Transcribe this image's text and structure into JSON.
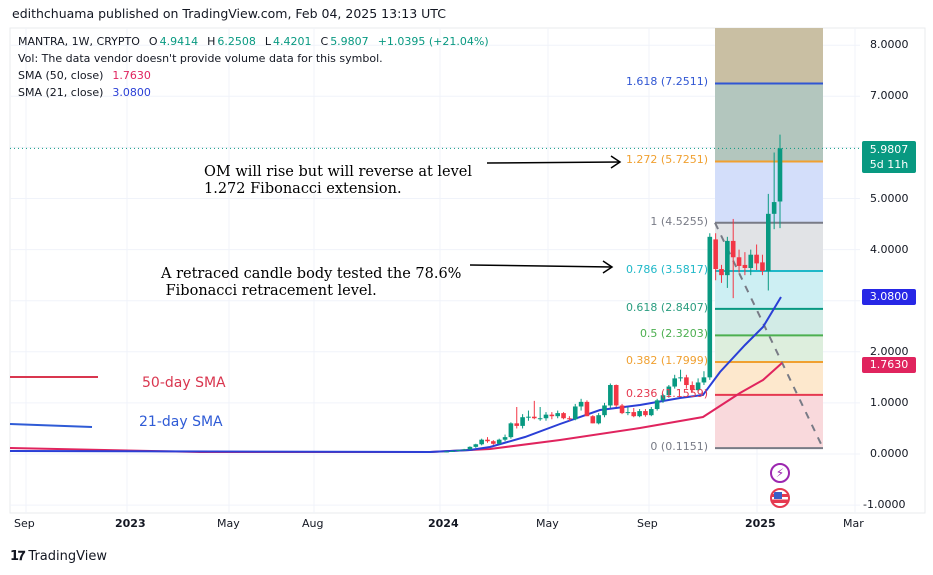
{
  "header": {
    "text": "edithchuama published on TradingView.com, Feb 04, 2025 13:13 UTC"
  },
  "legend": {
    "symbol": "MANTRA, 1W, CRYPTO",
    "open_label": "O",
    "open": "4.9414",
    "high_label": "H",
    "high": "6.2508",
    "low_label": "L",
    "low": "4.4201",
    "close_label": "C",
    "close": "5.9807",
    "change": "+1.0395 (+21.04%)",
    "vol_note": "Vol: The data vendor doesn't provide volume data for this symbol.",
    "sma50_label": "SMA (50, close)",
    "sma50_value": "1.7630",
    "sma21_label": "SMA (21, close)",
    "sma21_value": "3.0800"
  },
  "annotations": {
    "note1_line1": "OM will rise but will reverse at level",
    "note1_line2": "1.272 Fibonacci extension.",
    "note2_line1": "A retraced candle body tested the 78.6%",
    "note2_line2": " Fibonacci retracement level.",
    "sma50_key": "50-day SMA",
    "sma21_key": "21-day SMA"
  },
  "price_tags": {
    "last_price": "5.9807",
    "countdown": "5d 11h",
    "sma21": "3.0800",
    "sma50": "1.7630"
  },
  "colors": {
    "up": "#089981",
    "down": "#f23645",
    "sma21": "#2a3fd6",
    "sma50": "#e0245e",
    "last_price_bg": "#089981",
    "sma21_bg": "#2727e6",
    "sma50_bg": "#e0245e"
  },
  "icons": [
    "lightning-event-icon",
    "us-flag-event-icon",
    "tradingview-logo-icon"
  ],
  "branding": {
    "logo_text": "TradingView"
  },
  "chart_data": {
    "type": "candlestick",
    "interval": "1W",
    "y_axis": {
      "ticks": [
        "8.0000",
        "7.0000",
        "5.0000",
        "4.0000",
        "2.0000",
        "1.0000",
        "0.0000",
        "-1.0000"
      ],
      "range": [
        -1.1,
        8.3
      ]
    },
    "x_axis": {
      "ticks": [
        "Sep",
        "2023",
        "May",
        "Aug",
        "2024",
        "May",
        "Sep",
        "2025",
        "Mar"
      ]
    },
    "grid": true,
    "fib_levels": [
      {
        "label": "1.618 (7.2511)",
        "ratio": 1.618,
        "price": 7.2511,
        "color": "#3056d3",
        "fill": "#b3c6be"
      },
      {
        "label": "1.272 (5.7251)",
        "ratio": 1.272,
        "price": 5.7251,
        "color": "#f0a030",
        "fill": "#d3defa"
      },
      {
        "label": "1 (4.5255)",
        "ratio": 1,
        "price": 4.5255,
        "color": "#787b86",
        "fill": "#e1e3e6"
      },
      {
        "label": "0.786 (3.5817)",
        "ratio": 0.786,
        "price": 3.5817,
        "color": "#1fb8c8",
        "fill": "#cdeff3"
      },
      {
        "label": "0.618 (2.8407)",
        "ratio": 0.618,
        "price": 2.8407,
        "color": "#089981",
        "fill": "#d2ebe6"
      },
      {
        "label": "0.5 (2.3203)",
        "ratio": 0.5,
        "price": 2.3203,
        "color": "#4caf50",
        "fill": "#ddeedd"
      },
      {
        "label": "0.382 (1.7999)",
        "ratio": 0.382,
        "price": 1.7999,
        "color": "#f0a030",
        "fill": "#fde8cd"
      },
      {
        "label": "0.236 (1.1559)",
        "ratio": 0.236,
        "price": 1.1559,
        "color": "#e53950",
        "fill": "#f9d9dc"
      },
      {
        "label": "0 (0.1151)",
        "ratio": 0,
        "price": 0.1151,
        "color": "#787b86",
        "fill": null
      }
    ],
    "fib_top_fill": "#c9bfa3",
    "candles": [
      [
        0.04,
        0.05,
        0.03,
        0.05
      ],
      [
        0.05,
        0.07,
        0.04,
        0.06
      ],
      [
        0.06,
        0.08,
        0.05,
        0.08
      ],
      [
        0.08,
        0.1,
        0.07,
        0.09
      ],
      [
        0.09,
        0.15,
        0.08,
        0.14
      ],
      [
        0.14,
        0.2,
        0.12,
        0.19
      ],
      [
        0.19,
        0.3,
        0.17,
        0.28
      ],
      [
        0.28,
        0.33,
        0.22,
        0.25
      ],
      [
        0.25,
        0.27,
        0.18,
        0.2
      ],
      [
        0.2,
        0.3,
        0.19,
        0.28
      ],
      [
        0.28,
        0.38,
        0.25,
        0.33
      ],
      [
        0.33,
        0.62,
        0.3,
        0.6
      ],
      [
        0.6,
        0.92,
        0.5,
        0.55
      ],
      [
        0.55,
        0.78,
        0.5,
        0.72
      ],
      [
        0.72,
        0.85,
        0.65,
        0.73
      ],
      [
        0.73,
        1.04,
        0.68,
        0.7
      ],
      [
        0.7,
        0.92,
        0.65,
        0.7
      ],
      [
        0.7,
        0.82,
        0.65,
        0.77
      ],
      [
        0.77,
        0.82,
        0.68,
        0.74
      ],
      [
        0.74,
        0.85,
        0.7,
        0.8
      ],
      [
        0.8,
        0.82,
        0.68,
        0.7
      ],
      [
        0.7,
        0.74,
        0.65,
        0.68
      ],
      [
        0.68,
        0.98,
        0.66,
        0.93
      ],
      [
        0.93,
        1.08,
        0.85,
        1.02
      ],
      [
        1.02,
        1.05,
        0.74,
        0.74
      ],
      [
        0.74,
        0.76,
        0.6,
        0.6
      ],
      [
        0.6,
        0.8,
        0.58,
        0.76
      ],
      [
        0.76,
        1.0,
        0.72,
        0.95
      ],
      [
        0.95,
        1.38,
        0.9,
        1.35
      ],
      [
        1.35,
        1.36,
        0.92,
        0.95
      ],
      [
        0.95,
        0.98,
        0.78,
        0.8
      ],
      [
        0.8,
        0.92,
        0.76,
        0.82
      ],
      [
        0.82,
        0.9,
        0.72,
        0.74
      ],
      [
        0.74,
        0.88,
        0.72,
        0.84
      ],
      [
        0.84,
        0.88,
        0.73,
        0.76
      ],
      [
        0.76,
        0.92,
        0.74,
        0.88
      ],
      [
        0.88,
        1.08,
        0.85,
        1.05
      ],
      [
        1.05,
        1.18,
        1.0,
        1.15
      ],
      [
        1.15,
        1.35,
        1.1,
        1.32
      ],
      [
        1.32,
        1.55,
        1.28,
        1.48
      ],
      [
        1.48,
        1.65,
        1.42,
        1.5
      ],
      [
        1.5,
        1.55,
        1.28,
        1.35
      ],
      [
        1.35,
        1.42,
        1.2,
        1.25
      ],
      [
        1.25,
        1.48,
        1.2,
        1.4
      ],
      [
        1.4,
        1.62,
        1.35,
        1.5
      ],
      [
        1.5,
        4.32,
        1.45,
        4.25
      ],
      [
        4.2,
        4.32,
        3.4,
        3.62
      ],
      [
        3.62,
        3.7,
        3.35,
        3.5
      ],
      [
        3.5,
        4.25,
        3.25,
        4.17
      ],
      [
        4.17,
        4.6,
        3.05,
        3.85
      ],
      [
        3.85,
        4.0,
        3.55,
        3.68
      ],
      [
        3.7,
        3.95,
        3.5,
        3.64
      ],
      [
        3.64,
        4.0,
        3.5,
        3.9
      ],
      [
        3.9,
        4.1,
        3.6,
        3.73
      ],
      [
        3.75,
        3.9,
        3.5,
        3.58
      ],
      [
        3.58,
        5.09,
        3.2,
        4.7
      ],
      [
        4.7,
        5.9,
        4.4,
        4.93
      ],
      [
        4.9414,
        6.2508,
        4.4201,
        5.9807
      ]
    ],
    "sma21": {
      "name": "SMA (21, close)",
      "last": 3.08
    },
    "sma50": {
      "name": "SMA (50, close)",
      "last": 1.763
    }
  }
}
